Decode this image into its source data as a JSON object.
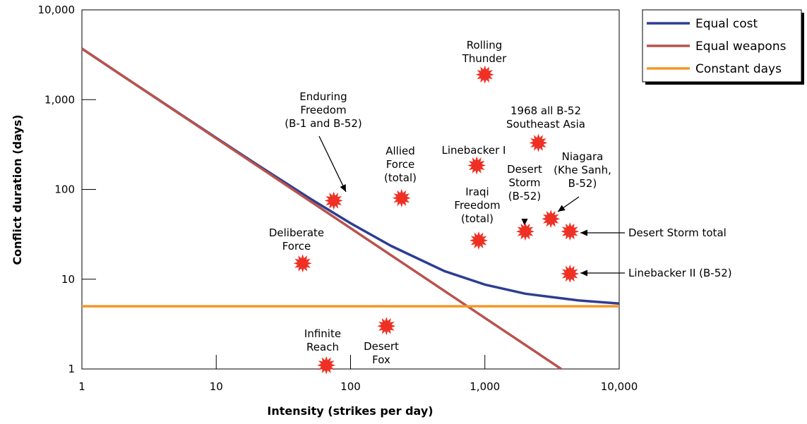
{
  "chart_data": {
    "type": "line",
    "title": "",
    "xlabel": "Intensity (strikes per day)",
    "ylabel": "Conflict duration (days)",
    "xscale": "log",
    "yscale": "log",
    "xlim": [
      1,
      10000
    ],
    "ylim": [
      1,
      10000
    ],
    "x_ticks": [
      1,
      10,
      100,
      1000,
      10000
    ],
    "x_tick_labels": [
      "1",
      "10",
      "100",
      "1,000",
      "10,000"
    ],
    "y_ticks": [
      1,
      10,
      100,
      1000,
      10000
    ],
    "y_tick_labels": [
      "1",
      "10",
      "100",
      "1,000",
      "10,000"
    ],
    "grid": false,
    "legend_position": "top-right, outside plot",
    "series": [
      {
        "name": "Equal cost",
        "color": "#2e3d92",
        "x": [
          1,
          2,
          5,
          10,
          20,
          50,
          100,
          200,
          500,
          1000,
          2000,
          5000,
          10000
        ],
        "y": [
          3700,
          1850,
          745,
          375,
          190,
          79,
          42,
          23.5,
          12.3,
          8.7,
          6.9,
          5.8,
          5.35
        ]
      },
      {
        "name": "Equal weapons",
        "color": "#b8534c",
        "x": [
          1,
          3700
        ],
        "y": [
          3700,
          1
        ]
      },
      {
        "name": "Constant days",
        "color": "#f2982a",
        "x": [
          1,
          10000
        ],
        "y": [
          5,
          5
        ]
      }
    ],
    "points": [
      {
        "label": "Rolling Thunder",
        "x": 1000,
        "y": 1900
      },
      {
        "label": "1968 all B-52 Southeast Asia",
        "x": 2500,
        "y": 330
      },
      {
        "label": "Linebacker I",
        "x": 870,
        "y": 185
      },
      {
        "label": "Enduring Freedom (B-1 and B-52)",
        "x": 75,
        "y": 75
      },
      {
        "label": "Allied Force (total)",
        "x": 240,
        "y": 80
      },
      {
        "label": "Niagara (Khe Sanh, B-52)",
        "x": 3100,
        "y": 47
      },
      {
        "label": "Desert Storm total",
        "x": 4300,
        "y": 34
      },
      {
        "label": "Desert Storm (B-52)",
        "x": 2000,
        "y": 34
      },
      {
        "label": "Iraqi Freedom (total)",
        "x": 900,
        "y": 27
      },
      {
        "label": "Deliberate Force",
        "x": 44,
        "y": 15
      },
      {
        "label": "Linebacker II (B-52)",
        "x": 4300,
        "y": 11.5
      },
      {
        "label": "Desert Fox",
        "x": 185,
        "y": 3
      },
      {
        "label": "Infinite Reach",
        "x": 66,
        "y": 1.1
      }
    ],
    "annotations": [
      {
        "lines": [
          "Rolling",
          "Thunder"
        ]
      },
      {
        "lines": [
          "1968 all B-52",
          "Southeast Asia"
        ]
      },
      {
        "lines": [
          "Linebacker I"
        ]
      },
      {
        "lines": [
          "Enduring",
          "Freedom",
          "(B-1 and B-52)"
        ]
      },
      {
        "lines": [
          "Allied",
          "Force",
          "(total)"
        ]
      },
      {
        "lines": [
          "Niagara",
          "(Khe Sanh,",
          "B-52)"
        ]
      },
      {
        "lines": [
          "Desert Storm total"
        ]
      },
      {
        "lines": [
          "Desert",
          "Storm",
          "(B-52)"
        ]
      },
      {
        "lines": [
          "Iraqi",
          "Freedom",
          "(total)"
        ]
      },
      {
        "lines": [
          "Deliberate",
          "Force"
        ]
      },
      {
        "lines": [
          "Linebacker II (B-52)"
        ]
      },
      {
        "lines": [
          "Desert",
          "Fox"
        ]
      },
      {
        "lines": [
          "Infinite",
          "Reach"
        ]
      }
    ],
    "marker_color": "#ee3124"
  }
}
